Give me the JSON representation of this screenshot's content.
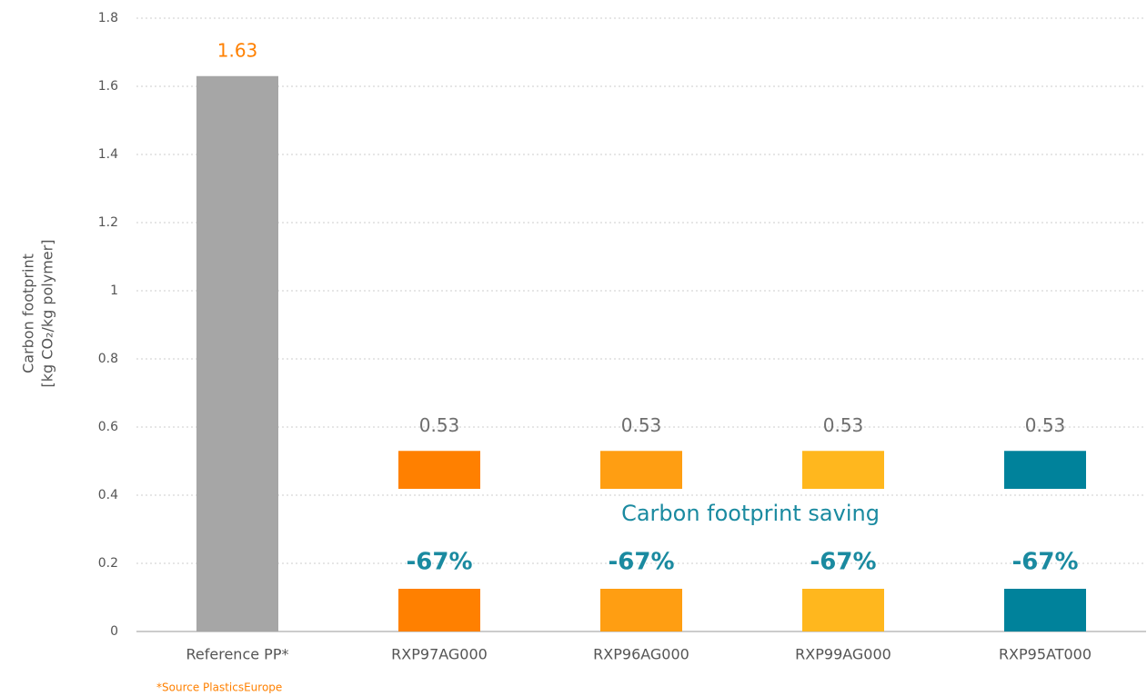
{
  "chart_data": {
    "type": "bar",
    "categories": [
      "Reference PP*",
      "RXP97AG000",
      "RXP96AG000",
      "RXP99AG000",
      "RXP95AT000"
    ],
    "values": [
      1.63,
      0.53,
      0.53,
      0.53,
      0.53
    ],
    "colors": [
      "#a6a6a6",
      "#ff8000",
      "#ff9e12",
      "#ffb71e",
      "#00829b"
    ],
    "value_label_colors": [
      "#ff8000",
      "#6e6e6e",
      "#6e6e6e",
      "#6e6e6e",
      "#6e6e6e"
    ],
    "broken_bars": [
      false,
      true,
      true,
      true,
      true
    ],
    "saving_title": "Carbon footprint saving",
    "saving_labels": [
      null,
      "-67%",
      "-67%",
      "-67%",
      "-67%"
    ],
    "y_label": [
      "Carbon footprint",
      "[kg CO₂/kg polymer]"
    ],
    "note": "*Source PlasticsEurope",
    "ylim": [
      0,
      1.8
    ],
    "yticks": [
      0,
      0.2,
      0.4,
      0.6,
      0.8,
      1,
      1.2,
      1.4,
      1.6,
      1.8
    ],
    "grid": true
  }
}
